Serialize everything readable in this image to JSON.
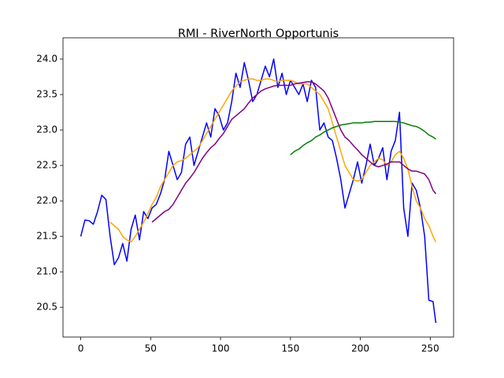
{
  "chart_data": {
    "type": "line",
    "title": "RMI - RiverNorth Opportunis",
    "x": [
      0,
      3,
      6,
      9,
      12,
      15,
      18,
      21,
      24,
      27,
      30,
      33,
      36,
      39,
      42,
      45,
      48,
      51,
      54,
      57,
      60,
      63,
      66,
      69,
      72,
      75,
      78,
      81,
      84,
      87,
      90,
      93,
      96,
      99,
      102,
      105,
      108,
      111,
      114,
      117,
      120,
      123,
      126,
      129,
      132,
      135,
      138,
      141,
      144,
      147,
      150,
      153,
      156,
      159,
      162,
      165,
      168,
      171,
      174,
      177,
      180,
      183,
      186,
      189,
      192,
      195,
      198,
      201,
      204,
      207,
      210,
      213,
      216,
      219,
      222,
      225,
      228,
      231,
      234,
      237,
      240,
      243,
      246,
      249,
      252,
      254
    ],
    "series": [
      {
        "color": "#0000ff",
        "values": [
          21.5,
          21.73,
          21.72,
          21.67,
          21.85,
          22.08,
          22.02,
          21.5,
          21.1,
          21.2,
          21.4,
          21.15,
          21.6,
          21.8,
          21.45,
          21.85,
          21.75,
          21.9,
          21.95,
          22.1,
          22.3,
          22.7,
          22.5,
          22.3,
          22.4,
          22.8,
          22.9,
          22.5,
          22.7,
          22.9,
          23.1,
          22.9,
          23.3,
          23.2,
          23.0,
          23.1,
          23.4,
          23.8,
          23.6,
          23.95,
          23.7,
          23.4,
          23.5,
          23.7,
          23.9,
          23.75,
          24.0,
          23.6,
          23.8,
          23.5,
          23.7,
          23.6,
          23.5,
          23.65,
          23.4,
          23.7,
          23.6,
          23.0,
          23.1,
          22.9,
          22.85,
          22.6,
          22.3,
          21.9,
          22.1,
          22.3,
          22.55,
          22.25,
          22.5,
          22.8,
          22.5,
          22.6,
          22.75,
          22.3,
          22.7,
          22.85,
          23.25,
          21.9,
          21.5,
          22.25,
          22.15,
          21.9,
          21.5,
          20.6,
          20.58,
          20.28
        ]
      },
      {
        "color": "#ffa500",
        "values": [
          null,
          null,
          null,
          null,
          null,
          null,
          null,
          21.7,
          21.65,
          21.6,
          21.5,
          21.45,
          21.42,
          21.5,
          21.6,
          21.7,
          21.82,
          21.95,
          22.05,
          22.2,
          22.3,
          22.4,
          22.5,
          22.55,
          22.57,
          22.6,
          22.65,
          22.7,
          22.75,
          22.85,
          22.95,
          23.05,
          23.15,
          23.25,
          23.35,
          23.45,
          23.55,
          23.62,
          23.68,
          23.7,
          23.72,
          23.72,
          23.7,
          23.7,
          23.72,
          23.72,
          23.7,
          23.68,
          23.7,
          23.7,
          23.7,
          23.68,
          23.65,
          23.65,
          23.65,
          23.6,
          23.55,
          23.5,
          23.4,
          23.3,
          23.1,
          22.9,
          22.7,
          22.5,
          22.4,
          22.3,
          22.28,
          22.3,
          22.4,
          22.5,
          22.55,
          22.6,
          22.58,
          22.5,
          22.55,
          22.65,
          22.7,
          22.6,
          22.45,
          22.2,
          22.0,
          21.9,
          21.75,
          21.65,
          21.5,
          21.42
        ]
      },
      {
        "color": "#800080",
        "values": [
          null,
          null,
          null,
          null,
          null,
          null,
          null,
          null,
          null,
          null,
          null,
          null,
          null,
          null,
          null,
          null,
          null,
          21.7,
          21.75,
          21.8,
          21.85,
          21.88,
          21.95,
          22.05,
          22.15,
          22.25,
          22.32,
          22.4,
          22.5,
          22.6,
          22.68,
          22.75,
          22.8,
          22.88,
          22.95,
          23.05,
          23.15,
          23.2,
          23.25,
          23.3,
          23.38,
          23.45,
          23.5,
          23.55,
          23.58,
          23.6,
          23.62,
          23.63,
          23.63,
          23.63,
          23.63,
          23.65,
          23.66,
          23.67,
          23.68,
          23.68,
          23.65,
          23.6,
          23.55,
          23.45,
          23.3,
          23.15,
          23.0,
          22.9,
          22.85,
          22.78,
          22.72,
          22.65,
          22.6,
          22.55,
          22.5,
          22.48,
          22.5,
          22.52,
          22.55,
          22.55,
          22.55,
          22.5,
          22.45,
          22.42,
          22.42,
          22.4,
          22.38,
          22.3,
          22.15,
          22.1
        ]
      },
      {
        "color": "#008000",
        "values": [
          null,
          null,
          null,
          null,
          null,
          null,
          null,
          null,
          null,
          null,
          null,
          null,
          null,
          null,
          null,
          null,
          null,
          null,
          null,
          null,
          null,
          null,
          null,
          null,
          null,
          null,
          null,
          null,
          null,
          null,
          null,
          null,
          null,
          null,
          null,
          null,
          null,
          null,
          null,
          null,
          null,
          null,
          null,
          null,
          null,
          null,
          null,
          null,
          null,
          null,
          22.65,
          22.7,
          22.73,
          22.78,
          22.82,
          22.85,
          22.9,
          22.93,
          22.97,
          23.0,
          23.03,
          23.05,
          23.07,
          23.08,
          23.09,
          23.1,
          23.1,
          23.1,
          23.11,
          23.11,
          23.12,
          23.12,
          23.12,
          23.12,
          23.12,
          23.12,
          23.11,
          23.1,
          23.08,
          23.06,
          23.05,
          23.02,
          22.98,
          22.93,
          22.9,
          22.87
        ]
      }
    ],
    "xlim": [
      -12.7,
      266.7
    ],
    "xticks": [
      0,
      50,
      100,
      150,
      200,
      250
    ],
    "ylim": [
      20.08,
      24.3
    ],
    "yticks": [
      20.5,
      {
        "value": 21,
        "label": "21.0"
      },
      21.5,
      {
        "value": 22,
        "label": "22.0"
      },
      22.5,
      {
        "value": 23,
        "label": "23.0"
      },
      23.5,
      {
        "value": 24,
        "label": "24.0"
      }
    ]
  }
}
